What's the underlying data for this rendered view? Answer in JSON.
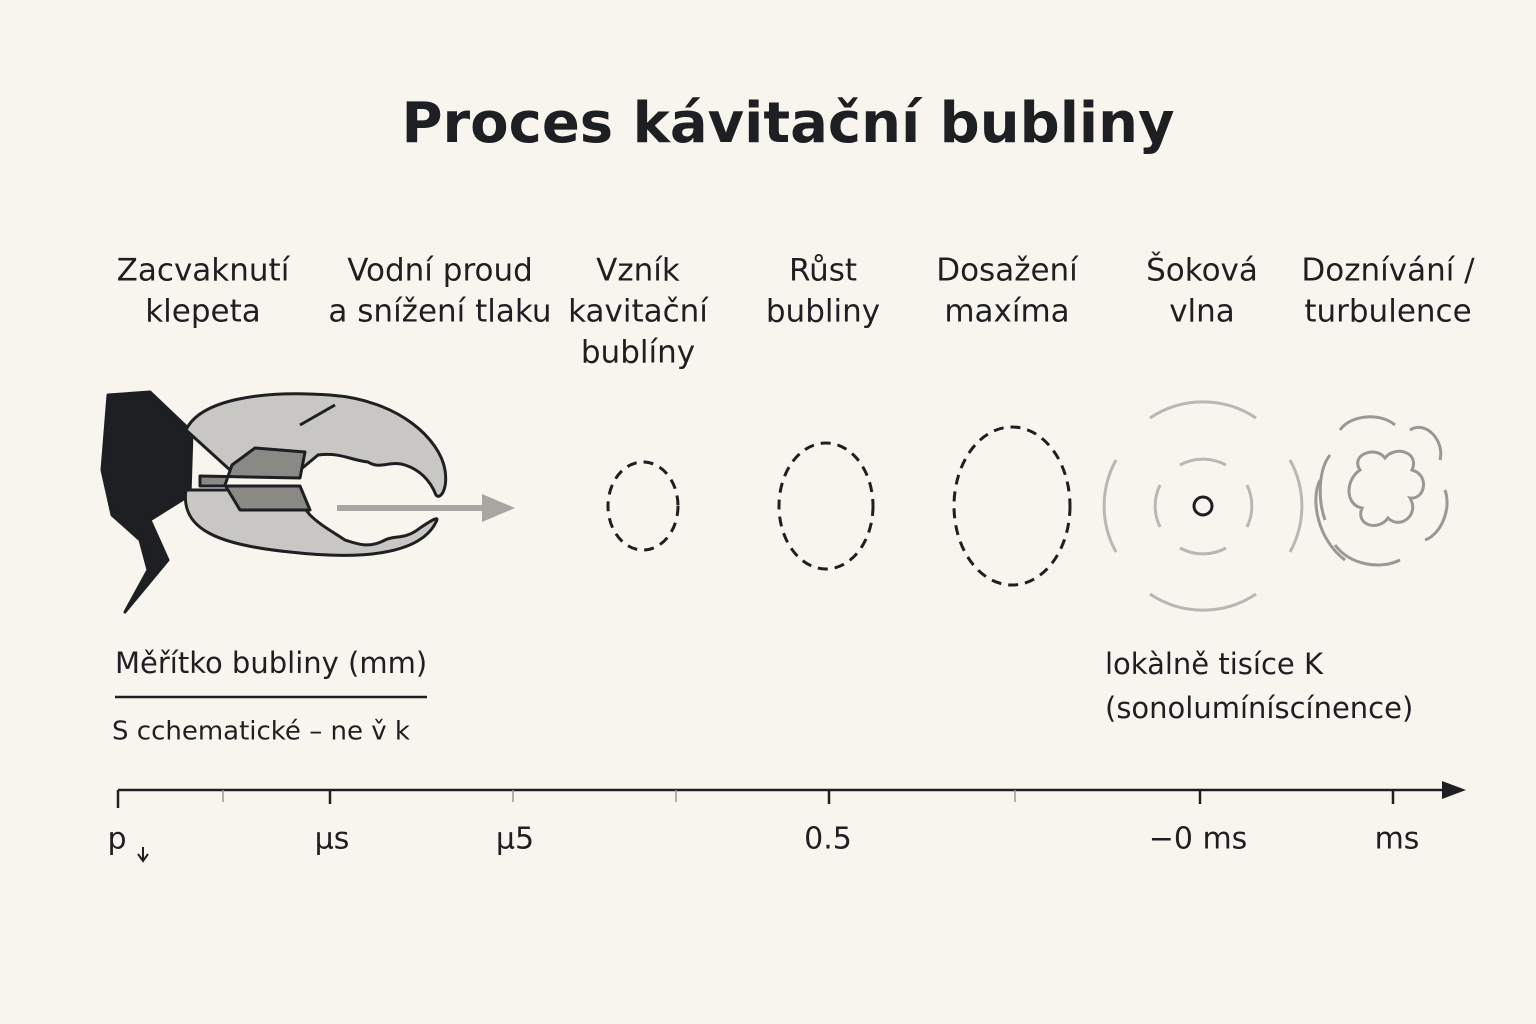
{
  "title": "Proces kávitační bubliny",
  "stages": [
    {
      "lines": [
        "Zacvaknutí",
        "klepeta"
      ]
    },
    {
      "lines": [
        "Vodní proud",
        "a snížení tlaku"
      ]
    },
    {
      "lines": [
        "Vzník",
        "kavitační",
        "bublíny"
      ]
    },
    {
      "lines": [
        "Růst",
        "bubliny"
      ]
    },
    {
      "lines": [
        "Dosažení",
        "maxíma"
      ]
    },
    {
      "lines": [
        "Šoková",
        "vlna"
      ]
    },
    {
      "lines": [
        "Doznívání /",
        "turbulence"
      ]
    }
  ],
  "scale": {
    "label": "Měřítko bubliny (mm)",
    "note": "S cchematické – ne v̌ k"
  },
  "annotation": {
    "lines": [
      "lokàlně tisíce K",
      "(sonolumíníscínence)"
    ]
  },
  "axis": {
    "labels": [
      "p",
      "µs",
      "µ5",
      "0.5",
      "−0 ms",
      "ms"
    ]
  }
}
